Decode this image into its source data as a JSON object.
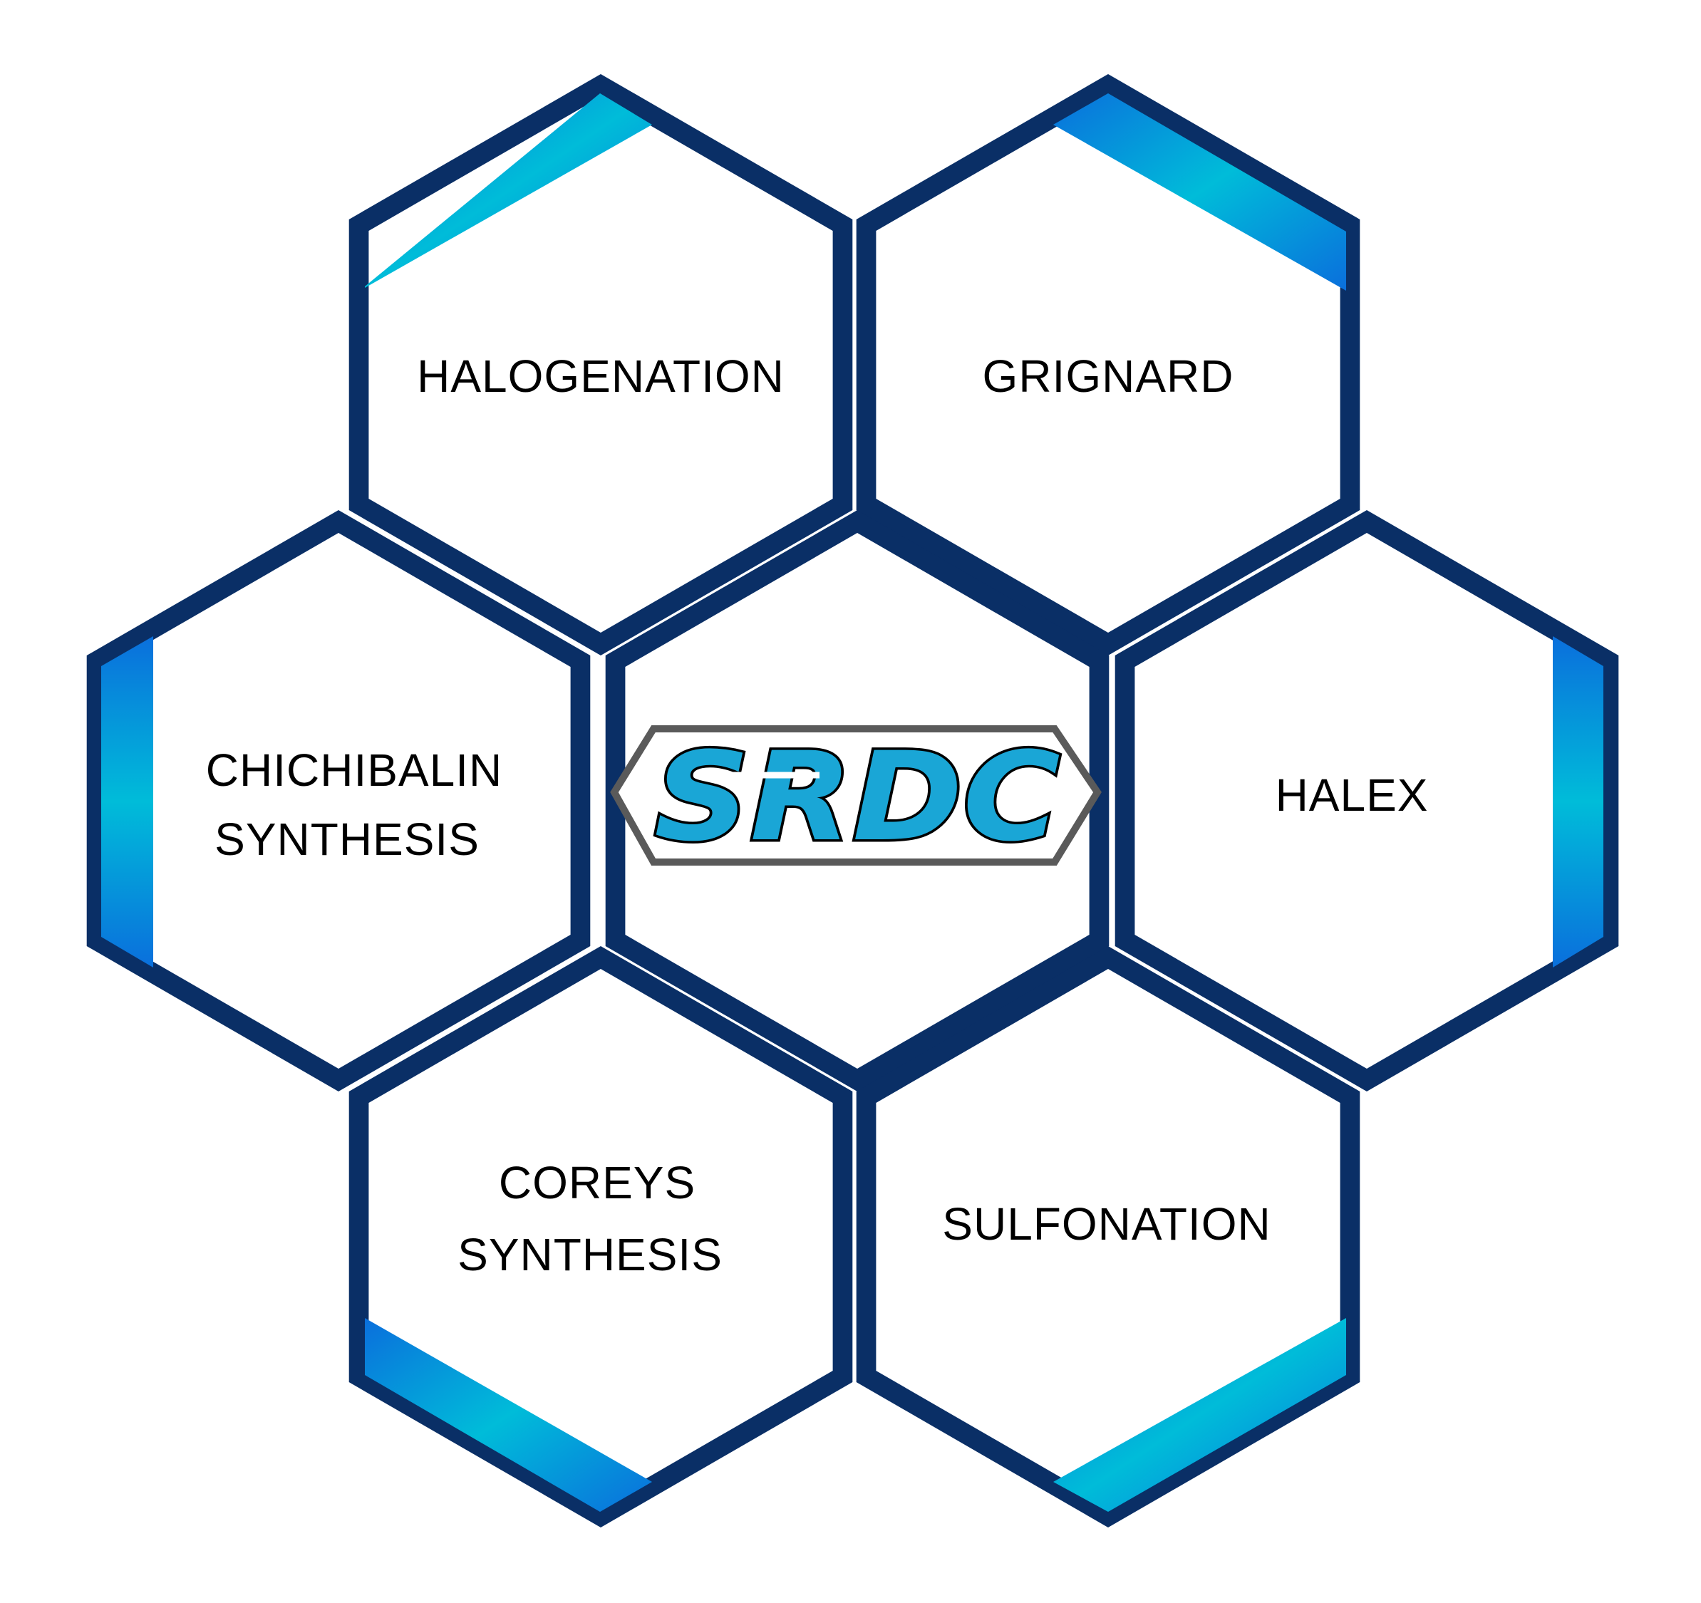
{
  "diagram": {
    "center": {
      "logo_text": "SRDC"
    },
    "hexagons": [
      {
        "id": "halogenation",
        "lines": [
          "HALOGENATION"
        ]
      },
      {
        "id": "grignard",
        "lines": [
          "GRIGNARD"
        ]
      },
      {
        "id": "chichibalin",
        "lines": [
          "CHICHIBALIN",
          "SYNTHESIS"
        ]
      },
      {
        "id": "halex",
        "lines": [
          "HALEX"
        ]
      },
      {
        "id": "coreys",
        "lines": [
          "COREYS",
          "SYNTHESIS"
        ]
      },
      {
        "id": "sulfonation",
        "lines": [
          "SULFONATION"
        ]
      }
    ],
    "colors": {
      "hex_border": "#0a2f66",
      "accent_light": "#00bcd9",
      "accent_dark": "#0a6fdc",
      "logo_fill": "#1aa6d6",
      "logo_outline": "#5a5a5a",
      "text": "#000000"
    }
  }
}
